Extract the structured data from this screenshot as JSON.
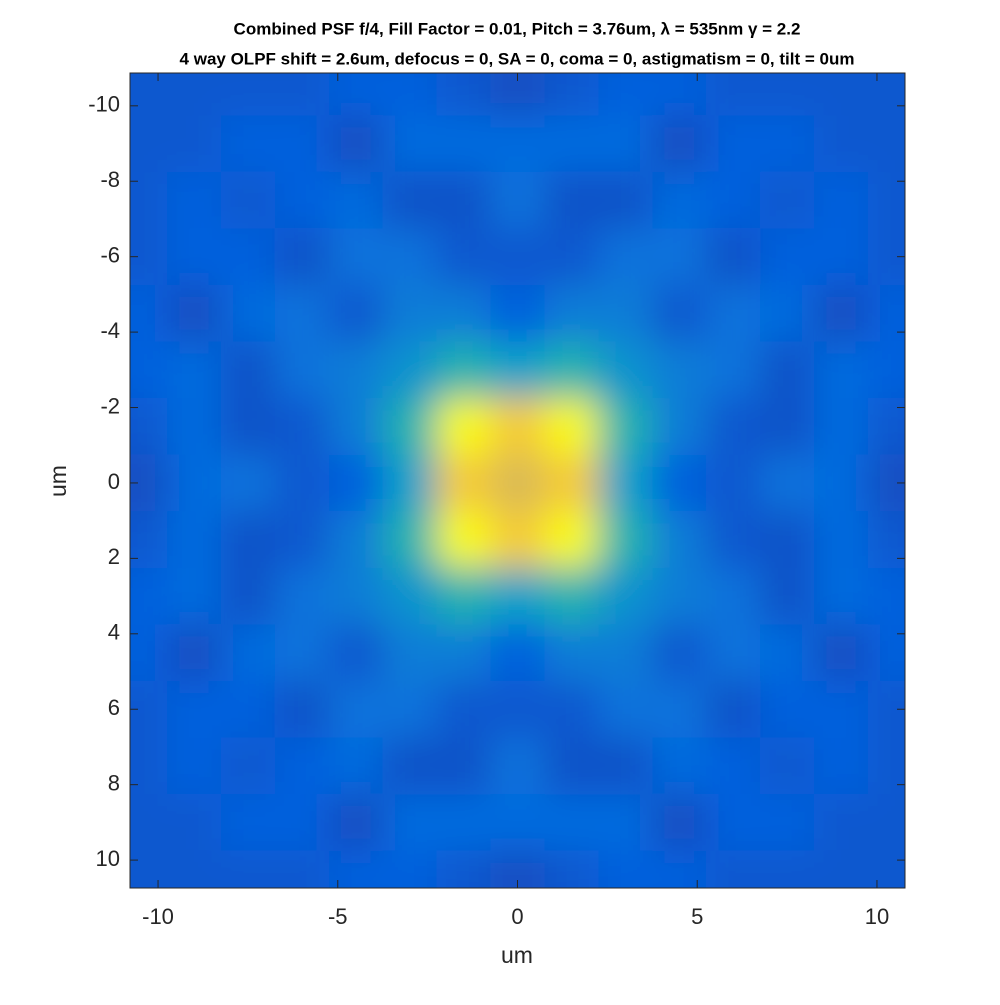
{
  "chart_data": {
    "type": "heatmap",
    "title": "Combined PSF f/4, Fill Factor = 0.01, Pitch = 3.76um, λ = 535nm γ = 2.2",
    "subtitle": "4 way OLPF shift = 2.6um, defocus = 0, SA = 0, coma = 0, astigmatism = 0, tilt = 0um",
    "x_label": "um",
    "y_label": "um",
    "x": [
      -10.5,
      -9,
      -7.5,
      -6,
      -4.5,
      -3,
      -1.5,
      0,
      1.5,
      3,
      4.5,
      6,
      7.5,
      9,
      10.5
    ],
    "y": [
      -10.5,
      -9,
      -7.5,
      -6,
      -4.5,
      -3,
      -1.5,
      0,
      1.5,
      3,
      4.5,
      6,
      7.5,
      9,
      10.5
    ],
    "z": [
      [
        0.1,
        0.1,
        0.1,
        0.1,
        0.12,
        0.12,
        0.1,
        0.08,
        0.1,
        0.12,
        0.12,
        0.1,
        0.1,
        0.1,
        0.1
      ],
      [
        0.1,
        0.1,
        0.12,
        0.12,
        0.08,
        0.15,
        0.15,
        0.15,
        0.15,
        0.15,
        0.08,
        0.12,
        0.12,
        0.1,
        0.1
      ],
      [
        0.1,
        0.12,
        0.1,
        0.12,
        0.15,
        0.09,
        0.09,
        0.18,
        0.09,
        0.09,
        0.15,
        0.12,
        0.1,
        0.12,
        0.1
      ],
      [
        0.1,
        0.12,
        0.12,
        0.09,
        0.18,
        0.18,
        0.1,
        0.1,
        0.1,
        0.18,
        0.18,
        0.09,
        0.12,
        0.12,
        0.1
      ],
      [
        0.12,
        0.08,
        0.15,
        0.18,
        0.1,
        0.22,
        0.22,
        0.12,
        0.22,
        0.22,
        0.1,
        0.18,
        0.15,
        0.08,
        0.12
      ],
      [
        0.12,
        0.15,
        0.09,
        0.18,
        0.22,
        0.3,
        0.45,
        0.35,
        0.45,
        0.3,
        0.22,
        0.18,
        0.09,
        0.15,
        0.12
      ],
      [
        0.1,
        0.15,
        0.09,
        0.1,
        0.22,
        0.45,
        1,
        0.85,
        1,
        0.45,
        0.22,
        0.1,
        0.09,
        0.15,
        0.1
      ],
      [
        0.08,
        0.15,
        0.18,
        0.1,
        0.12,
        0.35,
        0.85,
        0.75,
        0.85,
        0.35,
        0.12,
        0.1,
        0.18,
        0.15,
        0.08
      ],
      [
        0.1,
        0.15,
        0.09,
        0.1,
        0.22,
        0.45,
        1,
        0.85,
        1,
        0.45,
        0.22,
        0.1,
        0.09,
        0.15,
        0.1
      ],
      [
        0.12,
        0.15,
        0.09,
        0.18,
        0.22,
        0.3,
        0.45,
        0.35,
        0.45,
        0.3,
        0.22,
        0.18,
        0.09,
        0.15,
        0.12
      ],
      [
        0.12,
        0.08,
        0.15,
        0.18,
        0.1,
        0.22,
        0.22,
        0.12,
        0.22,
        0.22,
        0.1,
        0.18,
        0.15,
        0.08,
        0.12
      ],
      [
        0.1,
        0.12,
        0.12,
        0.09,
        0.18,
        0.18,
        0.1,
        0.1,
        0.1,
        0.18,
        0.18,
        0.09,
        0.12,
        0.12,
        0.1
      ],
      [
        0.1,
        0.12,
        0.1,
        0.12,
        0.15,
        0.09,
        0.09,
        0.18,
        0.09,
        0.09,
        0.15,
        0.12,
        0.1,
        0.12,
        0.1
      ],
      [
        0.1,
        0.1,
        0.12,
        0.12,
        0.08,
        0.15,
        0.15,
        0.15,
        0.15,
        0.15,
        0.08,
        0.12,
        0.12,
        0.1,
        0.1
      ],
      [
        0.1,
        0.1,
        0.1,
        0.1,
        0.12,
        0.12,
        0.1,
        0.08,
        0.1,
        0.12,
        0.12,
        0.1,
        0.1,
        0.1,
        0.1
      ]
    ],
    "zlim": [
      0,
      1
    ],
    "colormap": "parula",
    "xlim": [
      -10.78,
      10.78
    ],
    "ylim": [
      -10.87,
      10.74
    ],
    "y_reversed": true,
    "xticks": [
      -10,
      -5,
      0,
      5,
      10
    ],
    "yticks": [
      -10,
      -8,
      -6,
      -4,
      -2,
      0,
      2,
      4,
      6,
      8,
      10
    ]
  }
}
